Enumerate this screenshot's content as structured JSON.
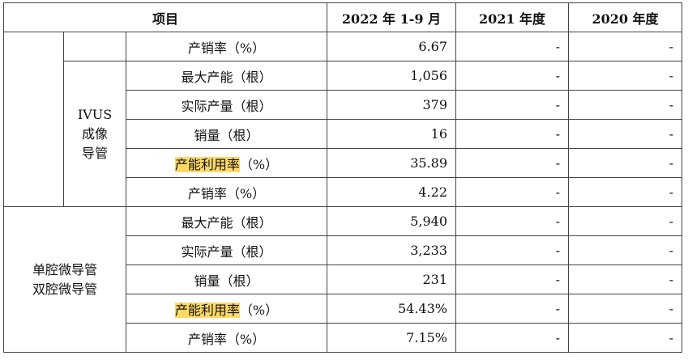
{
  "header": {
    "item": "项目",
    "col1": "2022 年 1-9 月",
    "col2": "2021 年度",
    "col3": "2020 年度"
  },
  "dash": "-",
  "rows": {
    "r0": {
      "label": "产销率（%）",
      "v": "6.67"
    },
    "ivus": {
      "group_line1": "IVUS",
      "group_line2": "成像",
      "group_line3": "导管",
      "r1": {
        "label": "最大产能（根）",
        "v": "1,056"
      },
      "r2": {
        "label": "实际产量（根）",
        "v": "379"
      },
      "r3": {
        "label": "销量（根）",
        "v": "16"
      },
      "r4": {
        "label_hl": "产能利用率",
        "label_rest": "（%）",
        "v": "35.89"
      },
      "r5": {
        "label": "产销率（%）",
        "v": "4.22"
      }
    },
    "micro": {
      "group_line1": "单腔微导管",
      "group_line2": "双腔微导管",
      "r6": {
        "label": "最大产能（根）",
        "v": "5,940"
      },
      "r7": {
        "label": "实际产量（根）",
        "v": "3,233"
      },
      "r8": {
        "label": "销量（根）",
        "v": "231"
      },
      "r9": {
        "label_hl": "产能利用率",
        "label_rest": "（%）",
        "v": "54.43%"
      },
      "r10": {
        "label": "产销率（%）",
        "v": "7.15%"
      }
    }
  },
  "colors": {
    "highlight": "#ffd966",
    "border": "#444444"
  }
}
